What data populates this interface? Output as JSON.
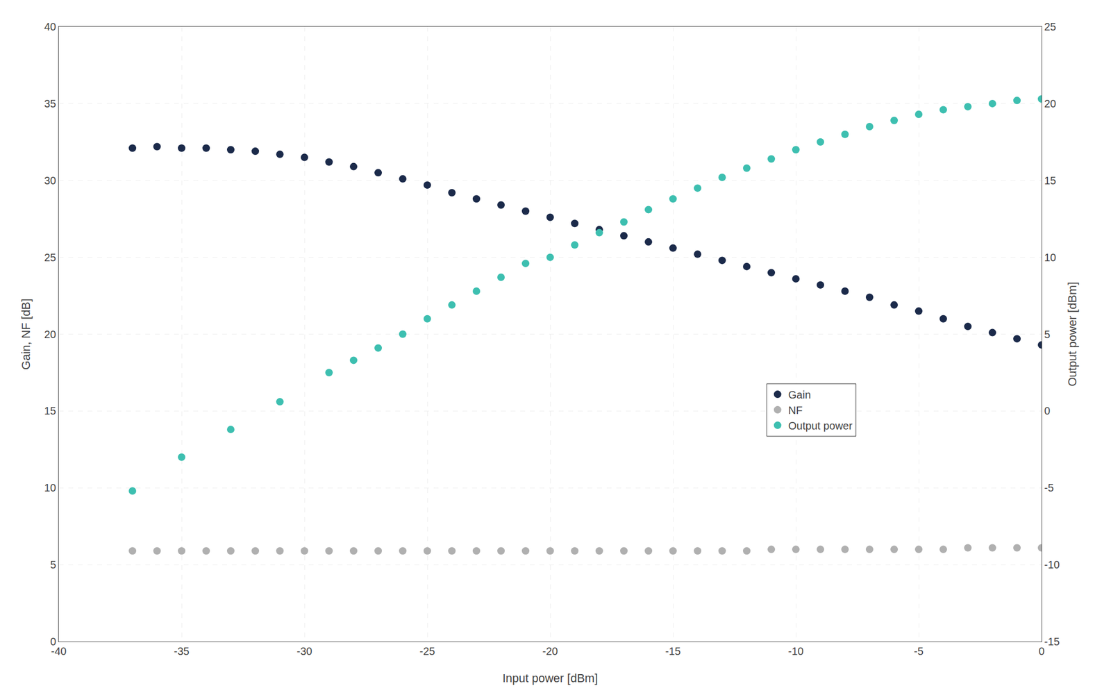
{
  "chart_data": {
    "type": "scatter",
    "xlabel": "Input power [dBm]",
    "ylabel": "Gain, NF [dB]",
    "y2label": "Output power [dBm]",
    "xlim": [
      -40,
      0
    ],
    "xticks": [
      -40,
      -35,
      -30,
      -25,
      -20,
      -15,
      -10,
      -5,
      0
    ],
    "ylim": [
      0,
      40
    ],
    "yticks": [
      0,
      5,
      10,
      15,
      20,
      25,
      30,
      35,
      40
    ],
    "y2lim": [
      -15,
      25
    ],
    "y2ticks": [
      -15,
      -10,
      -5,
      0,
      5,
      10,
      15,
      20,
      25
    ],
    "grid": true,
    "legend": "lower right",
    "marker": "circle",
    "series": [
      {
        "name": "Gain",
        "color": "#1b2a4a",
        "x": [
          -37,
          -36,
          -35,
          -34,
          -33,
          -32,
          -31,
          -30,
          -29,
          -28,
          -27,
          -26,
          -25,
          -24,
          -23,
          -22,
          -21,
          -20,
          -19,
          -18,
          -17,
          -16,
          -15,
          -14,
          -13,
          -12,
          -11,
          -10,
          -9,
          -8,
          -7,
          -6,
          -5,
          -4,
          -3,
          -2,
          -1,
          0
        ],
        "values": [
          32.1,
          32.2,
          32.1,
          32.1,
          32.0,
          31.9,
          31.7,
          31.5,
          31.2,
          30.9,
          30.5,
          30.1,
          29.7,
          29.2,
          28.8,
          28.4,
          28.0,
          27.6,
          27.2,
          26.8,
          26.4,
          26.0,
          25.6,
          25.2,
          24.8,
          24.4,
          24.0,
          23.6,
          23.2,
          22.8,
          22.4,
          21.9,
          21.5,
          21.0,
          20.5,
          20.1,
          19.7,
          19.3
        ]
      },
      {
        "name": "NF",
        "color": "#b0b0b0",
        "x": [
          -37,
          -36,
          -35,
          -34,
          -33,
          -32,
          -31,
          -30,
          -29,
          -28,
          -27,
          -26,
          -25,
          -24,
          -23,
          -22,
          -21,
          -20,
          -19,
          -18,
          -17,
          -16,
          -15,
          -14,
          -13,
          -12,
          -11,
          -10,
          -9,
          -8,
          -7,
          -6,
          -5,
          -4,
          -3,
          -2,
          -1,
          0
        ],
        "values": [
          5.9,
          5.9,
          5.9,
          5.9,
          5.9,
          5.9,
          5.9,
          5.9,
          5.9,
          5.9,
          5.9,
          5.9,
          5.9,
          5.9,
          5.9,
          5.9,
          5.9,
          5.9,
          5.9,
          5.9,
          5.9,
          5.9,
          5.9,
          5.9,
          5.9,
          5.9,
          6.0,
          6.0,
          6.0,
          6.0,
          6.0,
          6.0,
          6.0,
          6.0,
          6.1,
          6.1,
          6.1,
          6.1
        ]
      },
      {
        "name": "Output power",
        "color": "#3dbfb0",
        "axis": "y2",
        "x": [
          -37,
          -35,
          -33,
          -31,
          -29,
          -28,
          -27,
          -26,
          -25,
          -24,
          -23,
          -22,
          -21,
          -20,
          -19,
          -18,
          -17,
          -16,
          -15,
          -14,
          -13,
          -12,
          -11,
          -10,
          -9,
          -8,
          -7,
          -6,
          -5,
          -4,
          -3,
          -2,
          -1,
          0
        ],
        "values": [
          -5.2,
          -3.0,
          -1.2,
          0.6,
          2.5,
          3.3,
          4.1,
          5.0,
          6.0,
          6.9,
          7.8,
          8.7,
          9.6,
          10.0,
          10.8,
          11.6,
          12.3,
          13.1,
          13.8,
          14.5,
          15.2,
          15.8,
          16.4,
          17.0,
          17.5,
          18.0,
          18.5,
          18.9,
          19.3,
          19.6,
          19.8,
          20.0,
          20.2,
          20.3
        ]
      }
    ]
  }
}
